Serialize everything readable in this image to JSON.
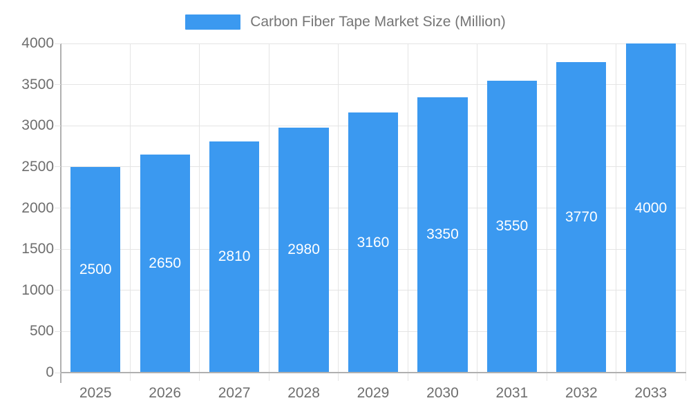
{
  "legend": {
    "label": "Carbon Fiber Tape Market Size (Million)"
  },
  "chart_data": {
    "type": "bar",
    "title": "Carbon Fiber Tape Market Size (Million)",
    "categories": [
      "2025",
      "2026",
      "2027",
      "2028",
      "2029",
      "2030",
      "2031",
      "2032",
      "2033"
    ],
    "values": [
      2500,
      2650,
      2810,
      2980,
      3160,
      3350,
      3550,
      3770,
      4000
    ],
    "xlabel": "",
    "ylabel": "",
    "ylim": [
      0,
      4000
    ],
    "ytick_step": 500,
    "grid": true,
    "legend_position": "top",
    "value_labels": "inside-center",
    "colors": {
      "bar": "#3b99f0",
      "value_text": "#ffffff",
      "grid": "#e4e4e4",
      "axis": "#b0b0b0",
      "tick_text": "#6e6e6e",
      "legend_text": "#757575",
      "background": "#ffffff"
    }
  }
}
